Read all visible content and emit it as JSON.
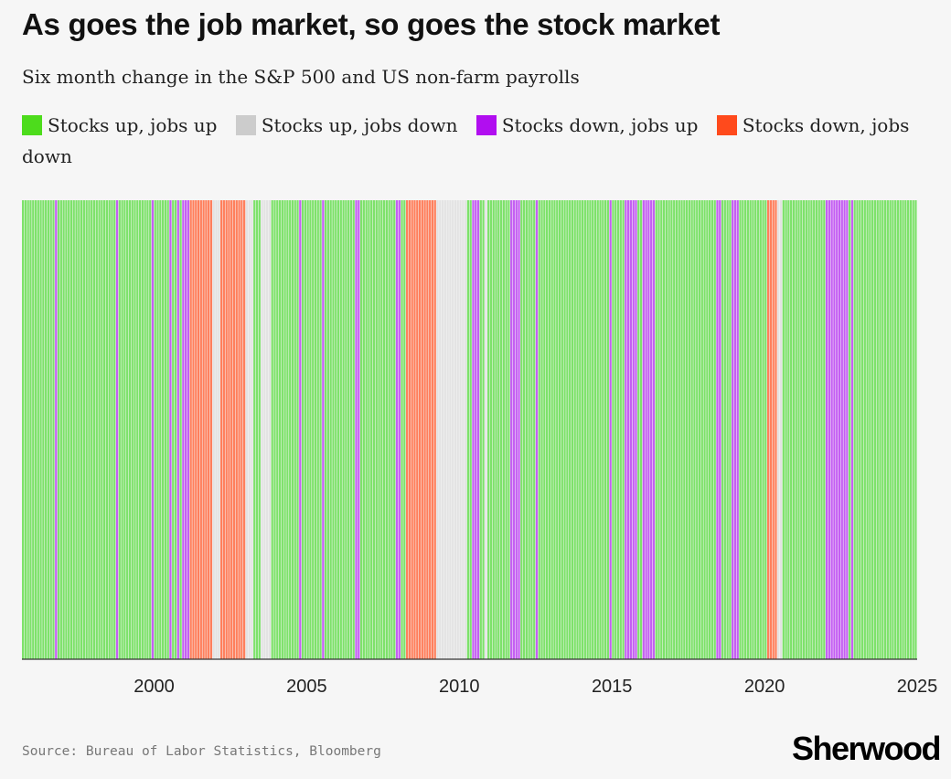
{
  "header": {
    "title": "As goes the job market, so goes the stock market",
    "subtitle": "Six month change in the S&P 500 and US non-farm payrolls"
  },
  "legend": [
    {
      "label": "Stocks up, jobs up",
      "color": "#4ddc1c",
      "category": "up-up"
    },
    {
      "label": "Stocks up, jobs down",
      "color": "#cccccc",
      "category": "up-down"
    },
    {
      "label": "Stocks down, jobs up",
      "color": "#b10ef0",
      "category": "down-up"
    },
    {
      "label": "Stocks down, jobs down",
      "color": "#ff4a1c",
      "category": "down-down"
    }
  ],
  "footer": {
    "source": "Source: Bureau of Labor Statistics, Bloomberg",
    "logo": "Sherwood"
  },
  "chart_data": {
    "type": "bar",
    "title": "As goes the job market, so goes the stock market",
    "subtitle": "Six month change in the S&P 500 and US non-farm payrolls",
    "x_range": [
      1995.67,
      2025
    ],
    "x_ticks": [
      2000,
      2005,
      2010,
      2015,
      2020,
      2025
    ],
    "grid": false,
    "legend_position": "top",
    "colors": {
      "up-up": "#7de26a",
      "up-down": "#e3e3e3",
      "down-up": "#c45ef3",
      "down-down": "#ff7f5c"
    },
    "series": [
      {
        "category": "down-up",
        "periods": [
          [
            1996.75,
            1996.83
          ],
          [
            1998.75,
            1998.83
          ],
          [
            1999.92,
            2000.0
          ],
          [
            2000.5,
            2000.58
          ],
          [
            2000.75,
            2000.83
          ],
          [
            2000.92,
            2001.17
          ],
          [
            2004.75,
            2004.83
          ],
          [
            2005.5,
            2005.58
          ],
          [
            2006.58,
            2006.75
          ],
          [
            2007.92,
            2008.08
          ],
          [
            2010.42,
            2010.67
          ],
          [
            2011.67,
            2012.0
          ],
          [
            2012.5,
            2012.58
          ],
          [
            2014.92,
            2015.0
          ],
          [
            2015.42,
            2015.83
          ],
          [
            2016.0,
            2016.42
          ],
          [
            2018.42,
            2018.58
          ],
          [
            2018.92,
            2019.17
          ],
          [
            2022.0,
            2022.75
          ],
          [
            2022.83,
            2022.92
          ]
        ]
      },
      {
        "category": "down-down",
        "periods": [
          [
            2001.17,
            2001.92
          ],
          [
            2002.17,
            2003.0
          ],
          [
            2008.25,
            2009.25
          ],
          [
            2020.08,
            2020.42
          ]
        ]
      },
      {
        "category": "up-down",
        "periods": [
          [
            2001.92,
            2002.17
          ],
          [
            2003.0,
            2003.25
          ],
          [
            2003.5,
            2003.83
          ],
          [
            2009.25,
            2010.25
          ],
          [
            2010.83,
            2010.92
          ],
          [
            2020.42,
            2020.58
          ]
        ]
      }
    ],
    "default_category": "up-up"
  }
}
